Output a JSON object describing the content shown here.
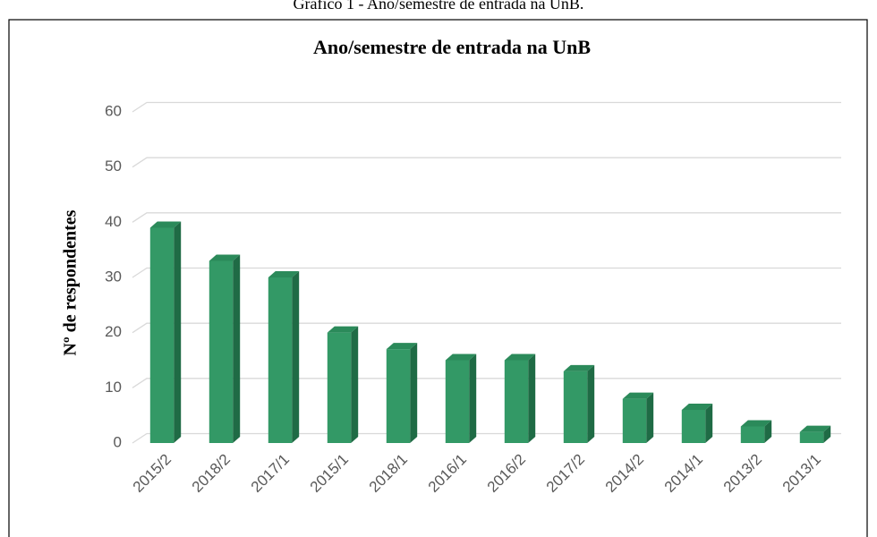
{
  "caption": "Gráfico 1 - Ano/semestre de entrada na UnB.",
  "chart_data": {
    "type": "bar",
    "title": "Ano/semestre de entrada na UnB",
    "y_label": "Nº de respondentes",
    "categories": [
      "2015/2",
      "2018/2",
      "2017/1",
      "2015/1",
      "2018/1",
      "2016/1",
      "2016/2",
      "2017/2",
      "2014/2",
      "2014/1",
      "2013/2",
      "2013/1"
    ],
    "values": [
      39,
      33,
      30,
      20,
      17,
      15,
      15,
      13,
      8,
      6,
      3,
      2
    ],
    "color": "#339966",
    "ylim": [
      0,
      60
    ],
    "yticks": [
      0,
      10,
      20,
      30,
      40,
      50,
      60
    ],
    "grid": true
  }
}
